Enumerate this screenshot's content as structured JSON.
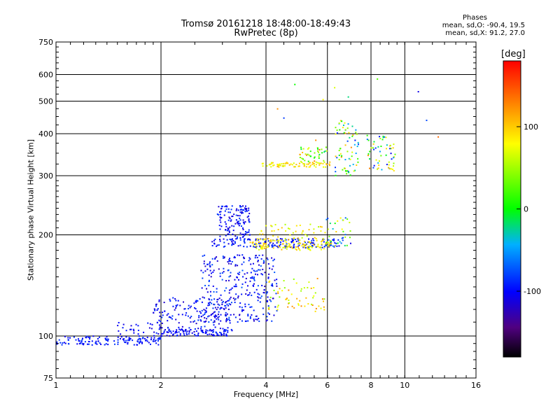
{
  "chart_data": {
    "type": "scatter",
    "title": "Tromsø 20161218 18:48:00-18:49:43",
    "subtitle": "RwPretec (8p)",
    "xlabel": "Frequency [MHz]",
    "ylabel": "Stationary phase Virtual Height [km]",
    "x_scale": "log",
    "y_scale": "log",
    "xlim": [
      1,
      16
    ],
    "ylim": [
      75,
      750
    ],
    "x_ticks": [
      "1",
      "2",
      "4",
      "6",
      "8",
      "10",
      "16"
    ],
    "y_ticks": [
      "75",
      "100",
      "200",
      "300",
      "400",
      "500",
      "600",
      "750"
    ],
    "grid": true,
    "colorbar": {
      "label": "[deg]",
      "range": [
        -180,
        180
      ],
      "ticks": [
        "100",
        "0",
        "-100"
      ],
      "colormap": "rainbow"
    },
    "phase_stats": {
      "title": "Phases",
      "o_mode": "mean, sd,O: -90.4, 19.5",
      "x_mode": "mean, sd,X:  91.2, 27.0"
    },
    "trace_groups": [
      {
        "x_range": [
          1.0,
          2.0
        ],
        "y_range": [
          94,
          100
        ],
        "phase_range": [
          -110,
          -80
        ],
        "count": 140
      },
      {
        "x_range": [
          1.5,
          2.0
        ],
        "y_range": [
          100,
          110
        ],
        "phase_range": [
          -115,
          -85
        ],
        "count": 30
      },
      {
        "x_range": [
          2.0,
          3.2
        ],
        "y_range": [
          100,
          105
        ],
        "phase_range": [
          -115,
          -85
        ],
        "count": 110
      },
      {
        "x_range": [
          1.9,
          3.2
        ],
        "y_range": [
          105,
          130
        ],
        "phase_range": [
          -120,
          -80
        ],
        "count": 150
      },
      {
        "x_range": [
          2.6,
          4.3
        ],
        "y_range": [
          110,
          175
        ],
        "phase_range": [
          -125,
          -70
        ],
        "count": 320
      },
      {
        "x_range": [
          2.9,
          3.6
        ],
        "y_range": [
          195,
          245
        ],
        "phase_range": [
          -120,
          -80
        ],
        "count": 130
      },
      {
        "x_range": [
          2.8,
          6.5
        ],
        "y_range": [
          183,
          195
        ],
        "phase_range": [
          -115,
          -80
        ],
        "count": 170
      },
      {
        "x_range": [
          3.6,
          6.2
        ],
        "y_range": [
          180,
          195
        ],
        "phase_range": [
          60,
          110
        ],
        "count": 130
      },
      {
        "x_range": [
          3.8,
          5.8
        ],
        "y_range": [
          195,
          215
        ],
        "phase_range": [
          50,
          110
        ],
        "count": 40
      },
      {
        "x_range": [
          4.0,
          6.0
        ],
        "y_range": [
          118,
          150
        ],
        "phase_range": [
          40,
          130
        ],
        "count": 60
      },
      {
        "x_range": [
          5.9,
          7.0
        ],
        "y_range": [
          185,
          225
        ],
        "phase_range": [
          -110,
          100
        ],
        "count": 40
      },
      {
        "x_range": [
          3.9,
          6.1
        ],
        "y_range": [
          318,
          330
        ],
        "phase_range": [
          60,
          110
        ],
        "count": 80
      },
      {
        "x_range": [
          5.0,
          6.0
        ],
        "y_range": [
          330,
          365
        ],
        "phase_range": [
          -20,
          140
        ],
        "count": 40
      },
      {
        "x_range": [
          6.3,
          7.4
        ],
        "y_range": [
          300,
          440
        ],
        "phase_range": [
          -100,
          130
        ],
        "count": 70
      },
      {
        "x_range": [
          7.8,
          9.4
        ],
        "y_range": [
          310,
          400
        ],
        "phase_range": [
          -110,
          130
        ],
        "count": 60
      },
      {
        "x_range": [
          4.2,
          12.5
        ],
        "y_range": [
          360,
          660
        ],
        "phase_range": [
          -110,
          140
        ],
        "count": 12
      }
    ]
  }
}
